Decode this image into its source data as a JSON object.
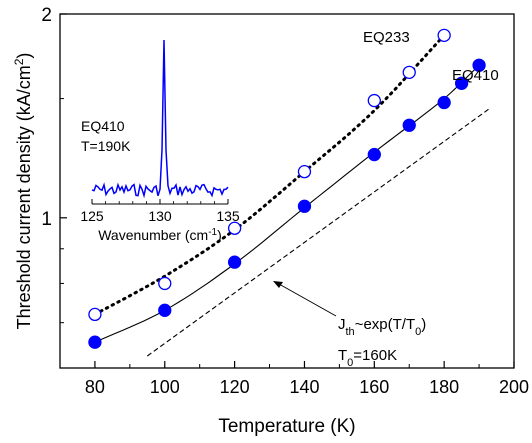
{
  "chart_data": {
    "type": "scatter",
    "xlabel": "Temperature (K)",
    "ylabel_main": "Threshold current density (kA/cm",
    "ylabel_sup": "2",
    "ylabel_end": ")",
    "xlim": [
      70,
      200
    ],
    "ylim": [
      0.6,
      2.0
    ],
    "yscale": "log",
    "xticks": [
      80,
      100,
      120,
      140,
      160,
      180,
      200
    ],
    "xtick_labels": [
      "80",
      "100",
      "120",
      "140",
      "160",
      "180",
      "200"
    ],
    "yticks": [
      1,
      2
    ],
    "ytick_labels": [
      "1",
      "2"
    ],
    "series": [
      {
        "name": "EQ233",
        "marker": "open-circle",
        "color": "#0000ff",
        "x": [
          80,
          100,
          120,
          140,
          160,
          170,
          180
        ],
        "y": [
          0.72,
          0.8,
          0.965,
          1.17,
          1.49,
          1.64,
          1.86
        ]
      },
      {
        "name": "EQ410",
        "marker": "filled-circle",
        "color": "#0000ff",
        "x": [
          80,
          100,
          120,
          140,
          160,
          170,
          180,
          185,
          190
        ],
        "y": [
          0.655,
          0.73,
          0.86,
          1.04,
          1.24,
          1.37,
          1.48,
          1.58,
          1.68
        ]
      }
    ],
    "fit_dotted": {
      "x": [
        80,
        100,
        120,
        140,
        160,
        180
      ],
      "y": [
        0.72,
        0.82,
        0.96,
        1.17,
        1.44,
        1.86
      ]
    },
    "fit_solid": {
      "x": [
        80,
        100,
        120,
        140,
        160,
        180,
        190
      ],
      "y": [
        0.655,
        0.73,
        0.855,
        1.035,
        1.25,
        1.5,
        1.68
      ]
    },
    "reference_dashed": {
      "x": [
        95,
        193
      ],
      "y": [
        0.625,
        1.45
      ]
    },
    "annotation": {
      "line1_main": "J",
      "line1_sub": "th",
      "line1_end": "~exp(T/T",
      "line1_sub2": "0",
      "line1_close": ")",
      "line2_main": "T",
      "line2_sub": "0",
      "line2_end": "=160K"
    },
    "labels": {
      "eq233": "EQ233",
      "eq410": "EQ410"
    },
    "inset": {
      "title_line1": "EQ410",
      "title_line2": "T=190K",
      "xlabel_main": "Wavenumber (cm",
      "xlabel_sup": "-1",
      "xlabel_end": ")",
      "xlim": [
        125,
        135
      ],
      "xticks": [
        125,
        130,
        135
      ],
      "xtick_labels": [
        "125",
        "130",
        "135"
      ],
      "peak_x": 130.3,
      "color": "#0000ff"
    }
  }
}
